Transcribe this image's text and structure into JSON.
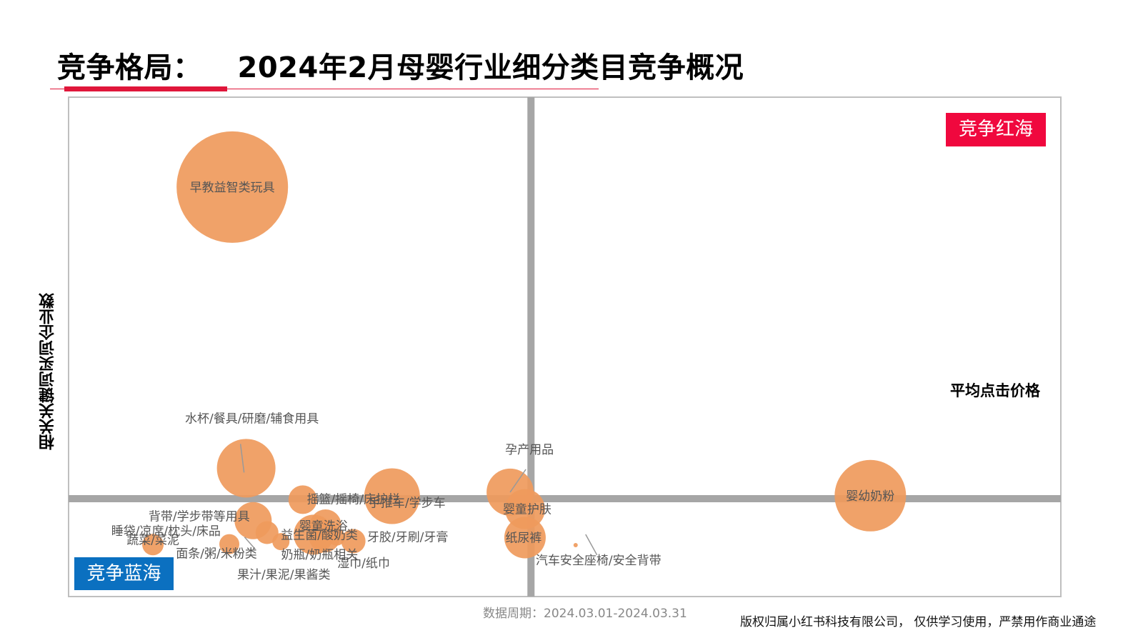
{
  "header": {
    "title_prefix": "竞争格局：",
    "title_main": "2024年2月母婴行业细分类目竞争概况"
  },
  "quadrants": {
    "red_sea": "竞争红海",
    "blue_ocean": "竞争蓝海"
  },
  "footer": {
    "period": "数据周期：2024.03.01-2024.03.31",
    "copyright": "版权归属小红书科技有限公司，  仅供学习使用，严禁用作商业通途"
  },
  "colors": {
    "bubble": "#ef9a5c",
    "bubble_dark": "#d88a55",
    "axis": "#a6a6a6",
    "frame": "#bfbfbf",
    "accent_red": "#e0163a",
    "badge_red": "#f0083e",
    "badge_blue": "#0b70c0"
  },
  "chart_data": {
    "type": "scatter",
    "bubble": true,
    "title": "2024年2月母婴行业细分类目竞争概况",
    "xlabel": "平均点击价格",
    "ylabel": "相关关键词买词企业数",
    "xlim": [
      0,
      100
    ],
    "ylim": [
      0,
      100
    ],
    "x_divider": 46.6,
    "y_divider": 19.6,
    "grid": false,
    "points": [
      {
        "label": "早教益智类玩具",
        "x": 16.5,
        "y": 82,
        "size": 78
      },
      {
        "label": "水杯/餐具/研磨/辅食用具",
        "x": 17.9,
        "y": 25.7,
        "size": 41
      },
      {
        "label": "睡袋/凉席/枕头/床品",
        "x": 18.6,
        "y": 15.2,
        "size": 26
      },
      {
        "label": "摇篮/摇椅/床护栏",
        "x": 23.6,
        "y": 19.4,
        "size": 20
      },
      {
        "label": "手推车/学步车",
        "x": 32.6,
        "y": 20.1,
        "size": 39
      },
      {
        "label": "婴童洗浴",
        "x": 25.9,
        "y": 14.3,
        "size": 22
      },
      {
        "label": "益生菌/酸奶类",
        "x": 24.7,
        "y": 12.4,
        "size": 28
      },
      {
        "label": "奶瓶/奶瓶相关",
        "x": 25.8,
        "y": 12.0,
        "size": 22
      },
      {
        "label": "牙胶/牙刷/牙膏",
        "x": 28.7,
        "y": 11.1,
        "size": 17
      },
      {
        "label": "背带/学步带等用具",
        "x": 20.0,
        "y": 12.8,
        "size": 16
      },
      {
        "label": "蔬菜/菜泥",
        "x": 8.5,
        "y": 10.4,
        "size": 15
      },
      {
        "label": "面条/粥/米粉类",
        "x": 16.2,
        "y": 10.5,
        "size": 14
      },
      {
        "label": "果汁/果泥/果酱类",
        "x": 21.4,
        "y": 11.0,
        "size": 12
      },
      {
        "label": "湿巾/纸巾",
        "x": 27.0,
        "y": 11.9,
        "size": 12
      },
      {
        "label": "孕产用品",
        "x": 44.5,
        "y": 20.9,
        "size": 33
      },
      {
        "label": "婴童护肤",
        "x": 46.0,
        "y": 17.5,
        "size": 28
      },
      {
        "label": "纸尿裤",
        "x": 46.0,
        "y": 11.8,
        "size": 29
      },
      {
        "label": "汽车安全座椅/安全背带",
        "x": 51.1,
        "y": 10.3,
        "size": 3
      },
      {
        "label": "婴幼奶粉",
        "x": 80.8,
        "y": 20.2,
        "size": 50
      }
    ]
  }
}
